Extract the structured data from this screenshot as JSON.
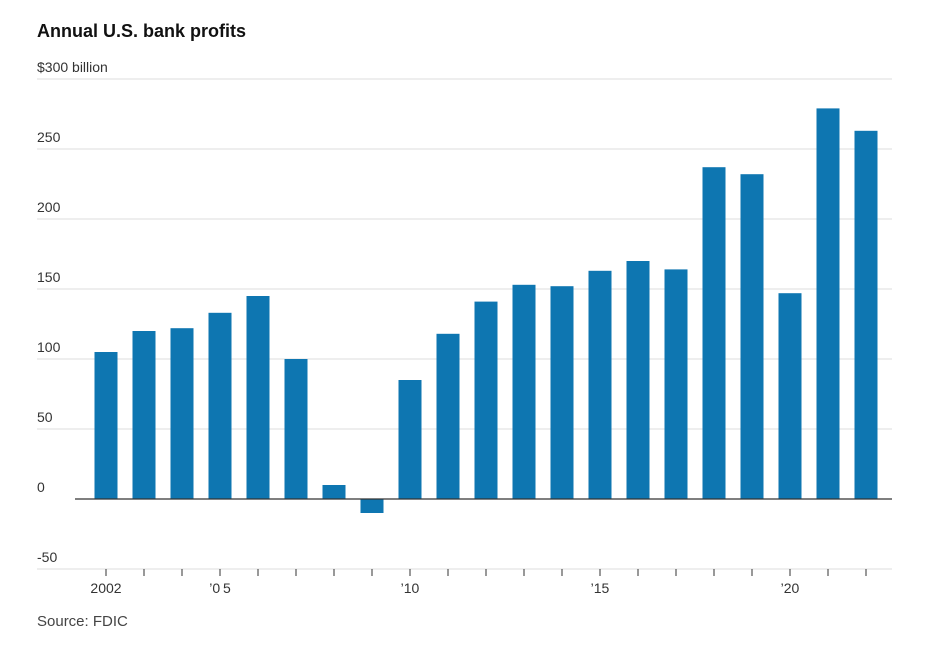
{
  "chart_data": {
    "type": "bar",
    "title": "Annual U.S. bank profits",
    "ylabel": "",
    "xlabel": "",
    "y_unit_label": "$300 billion",
    "ylim": [
      -50,
      300
    ],
    "y_ticks": [
      -50,
      0,
      50,
      100,
      150,
      200,
      250,
      300
    ],
    "y_tick_labels": [
      "-50",
      "0",
      "50",
      "100",
      "150",
      "200",
      "250",
      "$300 billion"
    ],
    "categories": [
      "2002",
      "2003",
      "2004",
      "2005",
      "2006",
      "2007",
      "2008",
      "2009",
      "2010",
      "2011",
      "2012",
      "2013",
      "2014",
      "2015",
      "2016",
      "2017",
      "2018",
      "2019",
      "2020",
      "2021",
      "2022"
    ],
    "values": [
      105,
      120,
      122,
      133,
      145,
      100,
      10,
      -10,
      85,
      118,
      141,
      153,
      152,
      163,
      170,
      164,
      237,
      232,
      147,
      279,
      263
    ],
    "x_tick_labels": [
      {
        "category": "2002",
        "label": "2002"
      },
      {
        "category": "2005",
        "label": "’0 5"
      },
      {
        "category": "2010",
        "label": "’10"
      },
      {
        "category": "2015",
        "label": "’15"
      },
      {
        "category": "2020",
        "label": "’20"
      }
    ],
    "bar_color": "#0e76b1",
    "grid": true
  },
  "source": "Source: FDIC"
}
